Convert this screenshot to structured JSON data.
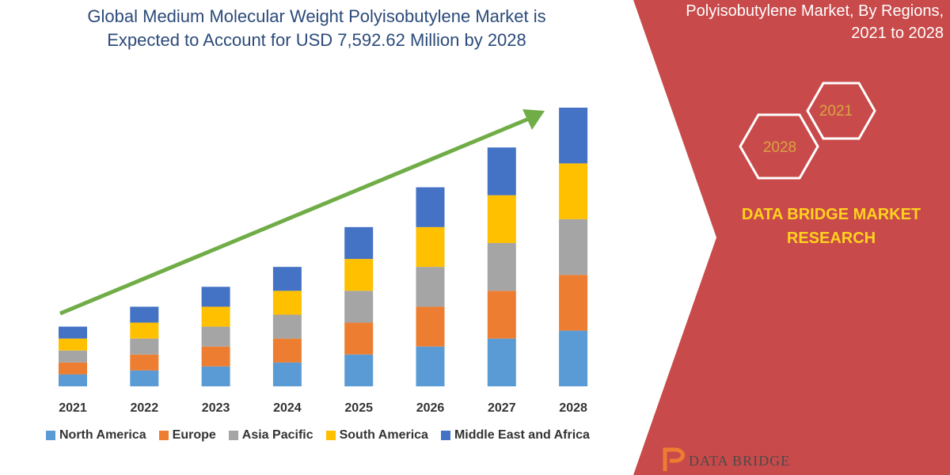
{
  "title": "Global Medium Molecular Weight Polyisobutylene Market is Expected to Account for USD 7,592.62 Million by 2028",
  "title_lines": [
    "Global Medium Molecular Weight Polyisobutylene Market is",
    "Expected to Account for USD 7,592.62 Million by 2028"
  ],
  "right_panel": {
    "title_lines": [
      "Polyisobutylene Market, By Regions,",
      "2021 to 2028"
    ],
    "hex_labels": [
      "2021",
      "2028"
    ],
    "brand_lines": [
      "DATA BRIDGE MARKET",
      "RESEARCH"
    ],
    "logo_text": "DATA BRIDGE",
    "panel_color": "#c94a4a",
    "brand_color": "#ffd21f"
  },
  "chart_data": {
    "type": "bar",
    "stacked": true,
    "categories": [
      "2021",
      "2022",
      "2023",
      "2024",
      "2025",
      "2026",
      "2027",
      "2028"
    ],
    "series": [
      {
        "name": "North America",
        "color": "#5b9bd5",
        "values": [
          3,
          4,
          5,
          6,
          8,
          10,
          12,
          14
        ]
      },
      {
        "name": "Europe",
        "color": "#ed7d31",
        "values": [
          3,
          4,
          5,
          6,
          8,
          10,
          12,
          14
        ]
      },
      {
        "name": "Asia Pacific",
        "color": "#a5a5a5",
        "values": [
          3,
          4,
          5,
          6,
          8,
          10,
          12,
          14
        ]
      },
      {
        "name": "South America",
        "color": "#ffc000",
        "values": [
          3,
          4,
          5,
          6,
          8,
          10,
          12,
          14
        ]
      },
      {
        "name": "Middle East and Africa",
        "color": "#4472c4",
        "values": [
          3,
          4,
          5,
          6,
          8,
          10,
          12,
          14
        ]
      }
    ],
    "ylim": [
      0,
      70
    ],
    "legend_position": "bottom",
    "trend_arrow_color": "#70ad47",
    "grid": false
  }
}
